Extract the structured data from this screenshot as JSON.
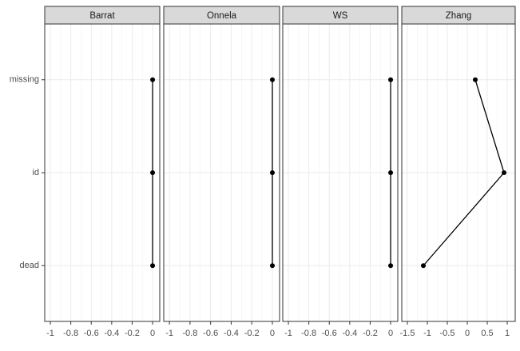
{
  "chart_data": [
    {
      "type": "line",
      "title": "Barrat",
      "categories": [
        "dead",
        "id",
        "missing"
      ],
      "values": [
        0,
        0,
        0
      ],
      "color": "#000000",
      "xlim": [
        -1.055,
        0.07
      ],
      "xticks": [
        -1,
        -0.8,
        -0.6,
        -0.4,
        -0.2,
        0
      ],
      "grid": true
    },
    {
      "type": "line",
      "title": "Onnela",
      "categories": [
        "dead",
        "id",
        "missing"
      ],
      "values": [
        0,
        0,
        0
      ],
      "color": "#000000",
      "xlim": [
        -1.055,
        0.07
      ],
      "xticks": [
        -1,
        -0.8,
        -0.6,
        -0.4,
        -0.2,
        0
      ],
      "grid": true
    },
    {
      "type": "line",
      "title": "WS",
      "categories": [
        "dead",
        "id",
        "missing"
      ],
      "values": [
        0,
        0,
        0
      ],
      "color": "#000000",
      "xlim": [
        -1.055,
        0.07
      ],
      "xticks": [
        -1,
        -0.8,
        -0.6,
        -0.4,
        -0.2,
        0
      ],
      "grid": true
    },
    {
      "type": "line",
      "title": "Zhang",
      "categories": [
        "dead",
        "id",
        "missing"
      ],
      "values": [
        -1.1,
        0.92,
        0.2
      ],
      "color": "#000000",
      "xlim": [
        -1.64,
        1.2
      ],
      "xticks": [
        -1.5,
        -1,
        -0.5,
        0,
        0.5,
        1
      ],
      "grid": true
    }
  ]
}
